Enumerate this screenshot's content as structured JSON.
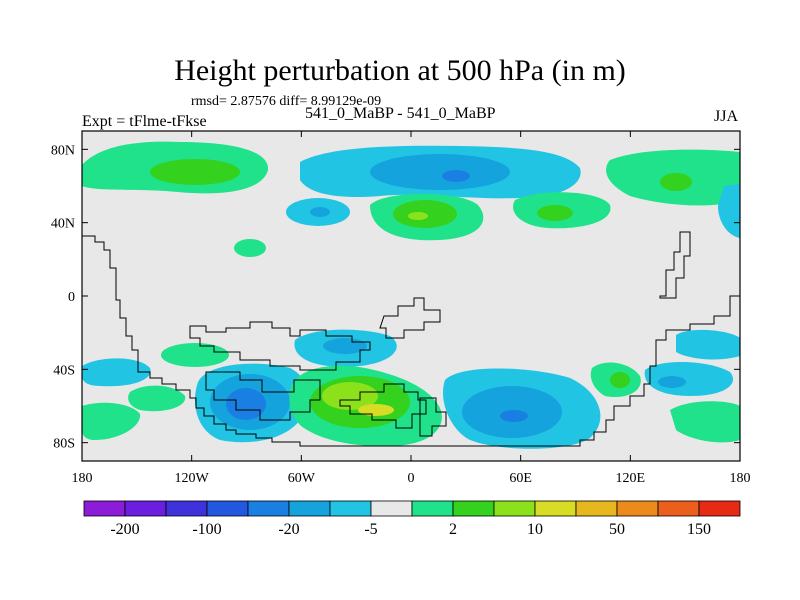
{
  "chart_data": {
    "type": "heatmap",
    "title": "Height perturbation at 500 hPa (in m)",
    "subtitle": "rmsd= 2.87576 diff= 8.99129e-09",
    "left_label": "Expt = tFlme-tFkse",
    "center_label": "541_0_MaBP - 541_0_MaBP",
    "right_label": "JJA",
    "xlim": [
      -180,
      180
    ],
    "ylim": [
      -90,
      90
    ],
    "x_ticks": [
      -180,
      -120,
      -60,
      0,
      60,
      120,
      180
    ],
    "x_tick_labels": [
      "180",
      "120W",
      "60W",
      "0",
      "60E",
      "120E",
      "180"
    ],
    "y_ticks": [
      80,
      40,
      0,
      -40,
      -80
    ],
    "y_tick_labels": [
      "80N",
      "40N",
      "0",
      "40S",
      "80S"
    ],
    "colorbar": {
      "colors": [
        "#8c1cd8",
        "#6a1ee0",
        "#3f32dc",
        "#2457e0",
        "#1a7fe2",
        "#14a3dd",
        "#22c4e4",
        "#e8e8e8",
        "#1fe28a",
        "#34d21e",
        "#8ce21a",
        "#d8dc24",
        "#e6b81e",
        "#ec8a1c",
        "#ec5e1c",
        "#e62a14"
      ],
      "tick_labels": [
        "-200",
        "-100",
        "-20",
        "-5",
        "2",
        "10",
        "50",
        "150"
      ]
    }
  }
}
